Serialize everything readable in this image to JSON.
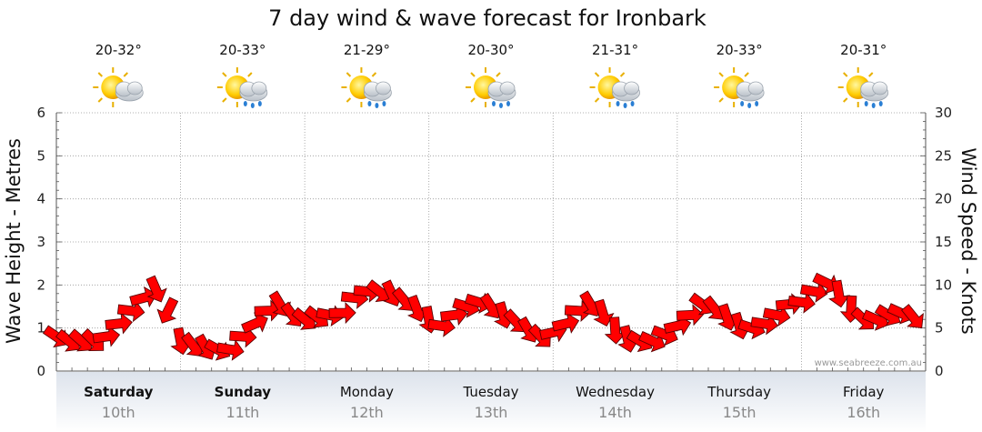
{
  "chart_data": {
    "type": "line",
    "title": "7 day wind & wave forecast for Ironbark",
    "ylabel_left": "Wave Height - Metres",
    "ylabel_right": "Wind Speed - Knots",
    "ylim_left": [
      0,
      6
    ],
    "ylim_right": [
      0,
      30
    ],
    "yticks_left": [
      "0",
      "1",
      "2",
      "3",
      "4",
      "5",
      "6"
    ],
    "yticks_right": [
      "0",
      "5",
      "10",
      "15",
      "20",
      "25",
      "30"
    ],
    "grid": true,
    "credit": "www.seabreeze.com.au",
    "days": [
      {
        "day": "Saturday",
        "date": "10th",
        "temp": "20-32°",
        "icon": "partly-cloudy-icon",
        "bold": true
      },
      {
        "day": "Sunday",
        "date": "11th",
        "temp": "20-33°",
        "icon": "partly-cloudy-rain-icon",
        "bold": true
      },
      {
        "day": "Monday",
        "date": "12th",
        "temp": "21-29°",
        "icon": "partly-cloudy-rain-icon",
        "bold": false
      },
      {
        "day": "Tuesday",
        "date": "13th",
        "temp": "20-30°",
        "icon": "partly-cloudy-rain-icon",
        "bold": false
      },
      {
        "day": "Wednesday",
        "date": "14th",
        "temp": "21-31°",
        "icon": "partly-cloudy-rain-icon",
        "bold": false
      },
      {
        "day": "Thursday",
        "date": "15th",
        "temp": "20-33°",
        "icon": "partly-cloudy-rain-icon",
        "bold": false
      },
      {
        "day": "Friday",
        "date": "16th",
        "temp": "20-31°",
        "icon": "partly-cloudy-rain-icon",
        "bold": false
      }
    ],
    "series": [
      {
        "marker": "wind-arrow",
        "color": "#ff0000",
        "x_day": [
          0.0,
          0.1,
          0.2,
          0.3,
          0.4,
          0.5,
          0.6,
          0.7,
          0.8,
          0.9,
          1.0,
          1.1,
          1.2,
          1.3,
          1.4,
          1.5,
          1.6,
          1.7,
          1.8,
          1.9,
          2.0,
          2.1,
          2.2,
          2.3,
          2.4,
          2.5,
          2.6,
          2.7,
          2.8,
          2.9,
          3.0,
          3.1,
          3.2,
          3.3,
          3.4,
          3.5,
          3.6,
          3.7,
          3.8,
          3.9,
          4.0,
          4.1,
          4.2,
          4.3,
          4.4,
          4.5,
          4.6,
          4.7,
          4.8,
          4.9,
          5.0,
          5.1,
          5.2,
          5.3,
          5.4,
          5.5,
          5.6,
          5.7,
          5.8,
          5.9,
          6.0,
          6.1,
          6.2,
          6.3,
          6.4,
          6.5,
          6.6,
          6.7,
          6.8,
          6.9
        ],
        "wave_height_m": [
          0.8,
          0.7,
          0.7,
          0.7,
          0.8,
          1.1,
          1.4,
          1.7,
          1.9,
          1.4,
          0.7,
          0.6,
          0.55,
          0.5,
          0.5,
          0.8,
          1.1,
          1.4,
          1.55,
          1.3,
          1.2,
          1.25,
          1.3,
          1.35,
          1.7,
          1.85,
          1.85,
          1.8,
          1.65,
          1.45,
          1.2,
          1.05,
          1.3,
          1.5,
          1.6,
          1.5,
          1.3,
          1.15,
          0.95,
          0.8,
          0.9,
          1.1,
          1.4,
          1.55,
          1.35,
          0.95,
          0.75,
          0.7,
          0.7,
          0.85,
          1.05,
          1.3,
          1.55,
          1.45,
          1.25,
          1.05,
          1.0,
          1.1,
          1.3,
          1.55,
          1.6,
          1.85,
          2.05,
          1.8,
          1.45,
          1.2,
          1.2,
          1.3,
          1.35,
          1.25
        ]
      }
    ]
  }
}
